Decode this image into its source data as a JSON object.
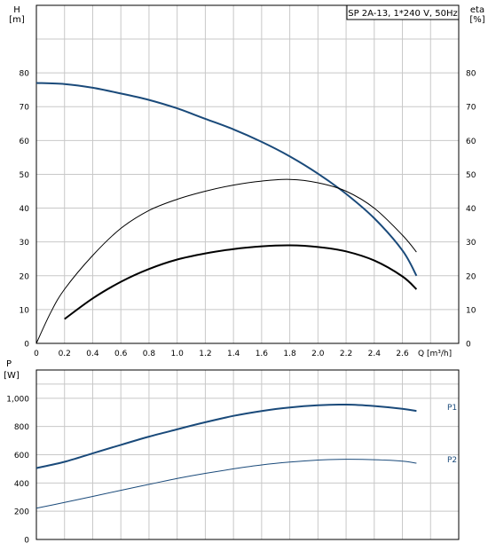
{
  "chart_data": [
    {
      "type": "line",
      "legend_box": "SP 2A-13, 1*240 V, 50Hz",
      "y_left_label": [
        "H",
        "[m]"
      ],
      "y_right_label": [
        "eta",
        "[%]"
      ],
      "x_label": "Q [m³/h]",
      "xlim": [
        0,
        3.0
      ],
      "ylim": [
        0,
        90
      ],
      "x_ticks": [
        "0",
        "0.2",
        "0.4",
        "0.6",
        "0.8",
        "1.0",
        "1.2",
        "1.4",
        "1.6",
        "1.8",
        "2.0",
        "2.2",
        "2.4",
        "2.6"
      ],
      "y_ticks": [
        "0",
        "10",
        "20",
        "30",
        "40",
        "50",
        "60",
        "70",
        "80"
      ],
      "grid": true,
      "colors": {
        "head": "#1a4a7a",
        "eta": "#000000",
        "eta_total": "#000000",
        "grid": "#c8c8c8",
        "axis": "#000000"
      },
      "series": [
        {
          "key": "head",
          "x": [
            0,
            0.2,
            0.4,
            0.6,
            0.8,
            1.0,
            1.2,
            1.4,
            1.6,
            1.8,
            2.0,
            2.2,
            2.4,
            2.6,
            2.7
          ],
          "y": [
            77,
            76.7,
            75.6,
            73.9,
            72,
            69.5,
            66.4,
            63.3,
            59.6,
            55.3,
            50.2,
            44.2,
            37,
            27.5,
            20
          ]
        },
        {
          "key": "eta",
          "x": [
            0,
            0.1,
            0.2,
            0.4,
            0.6,
            0.8,
            1.0,
            1.2,
            1.4,
            1.6,
            1.8,
            2.0,
            2.2,
            2.4,
            2.6,
            2.7
          ],
          "y": [
            0,
            9,
            16,
            26,
            34,
            39.3,
            42.6,
            45,
            46.8,
            48,
            48.5,
            47.5,
            45,
            40,
            32,
            27
          ]
        },
        {
          "key": "eta_total",
          "x": [
            0.2,
            0.4,
            0.6,
            0.8,
            1.0,
            1.2,
            1.4,
            1.6,
            1.8,
            2.0,
            2.2,
            2.4,
            2.6,
            2.7
          ],
          "y": [
            7.2,
            13.3,
            18.2,
            22,
            24.8,
            26.6,
            27.9,
            28.7,
            29,
            28.5,
            27.2,
            24.5,
            19.8,
            16
          ]
        }
      ]
    },
    {
      "type": "line",
      "y_label": [
        "P",
        "[W]"
      ],
      "xlim": [
        0,
        3.0
      ],
      "ylim": [
        0,
        1200
      ],
      "y_ticks": [
        "0",
        "200",
        "400",
        "600",
        "800",
        "1,000"
      ],
      "grid": true,
      "colors": {
        "P1": "#1a4a7a",
        "P2": "#1a4a7a"
      },
      "series": [
        {
          "name": "P1",
          "x": [
            0,
            0.2,
            0.4,
            0.6,
            0.8,
            1.0,
            1.2,
            1.4,
            1.6,
            1.8,
            2.0,
            2.2,
            2.4,
            2.6,
            2.7
          ],
          "y": [
            505,
            550,
            610,
            670,
            728,
            780,
            830,
            875,
            910,
            935,
            950,
            955,
            945,
            925,
            910
          ]
        },
        {
          "name": "P2",
          "x": [
            0,
            0.2,
            0.4,
            0.6,
            0.8,
            1.0,
            1.2,
            1.4,
            1.6,
            1.8,
            2.0,
            2.2,
            2.4,
            2.6,
            2.7
          ],
          "y": [
            222,
            262,
            305,
            348,
            390,
            432,
            468,
            500,
            528,
            548,
            562,
            568,
            565,
            555,
            540
          ]
        }
      ]
    }
  ]
}
